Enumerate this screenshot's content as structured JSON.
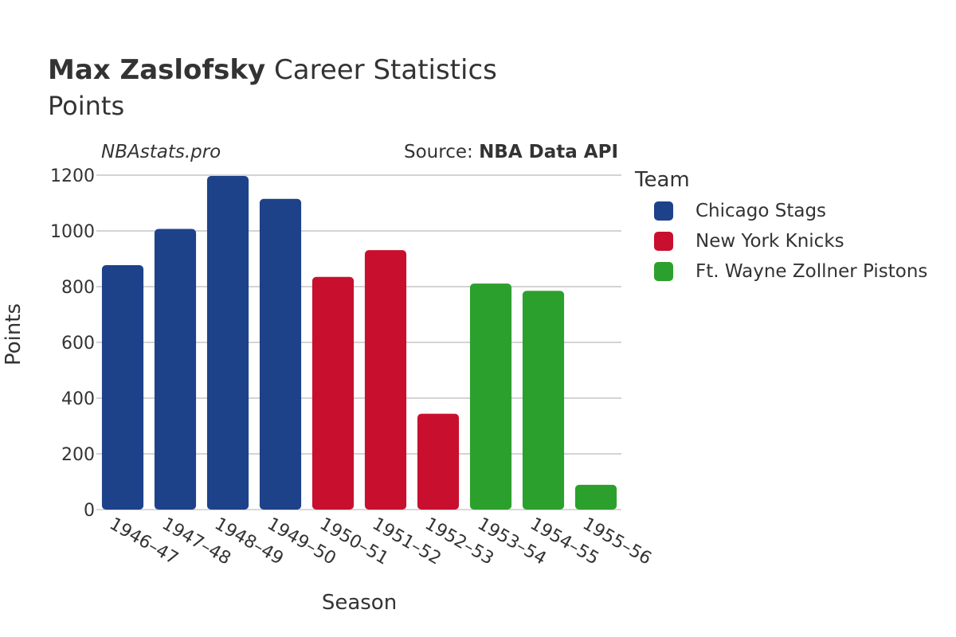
{
  "header": {
    "player_name": "Max Zaslofsky",
    "title_rest": " Career Statistics",
    "subtitle": "Points"
  },
  "watermark": "NBAstats.pro",
  "source": {
    "label": "Source: ",
    "value": "NBA Data API"
  },
  "chart_data": {
    "type": "bar",
    "title": "Max Zaslofsky Career Statistics",
    "subtitle": "Points",
    "xlabel": "Season",
    "ylabel": "Points",
    "ylim": [
      0,
      1200
    ],
    "yticks": [
      0,
      200,
      400,
      600,
      800,
      1000,
      1200
    ],
    "grid": true,
    "legend_position": "right",
    "legend_title": "Team",
    "categories": [
      "1946–47",
      "1947–48",
      "1948–49",
      "1949–50",
      "1950–51",
      "1951–52",
      "1952–53",
      "1953–54",
      "1954–55",
      "1955–56"
    ],
    "values": [
      877,
      1007,
      1197,
      1115,
      835,
      931,
      344,
      811,
      785,
      89
    ],
    "teams": [
      "Chicago Stags",
      "Chicago Stags",
      "Chicago Stags",
      "Chicago Stags",
      "New York Knicks",
      "New York Knicks",
      "New York Knicks",
      "Ft. Wayne Zollner Pistons",
      "Ft. Wayne Zollner Pistons",
      "Ft. Wayne Zollner Pistons"
    ],
    "series": [
      {
        "name": "Chicago Stags",
        "color": "#1d428a"
      },
      {
        "name": "New York Knicks",
        "color": "#c8102e"
      },
      {
        "name": "Ft. Wayne Zollner Pistons",
        "color": "#2ca02c"
      }
    ]
  }
}
